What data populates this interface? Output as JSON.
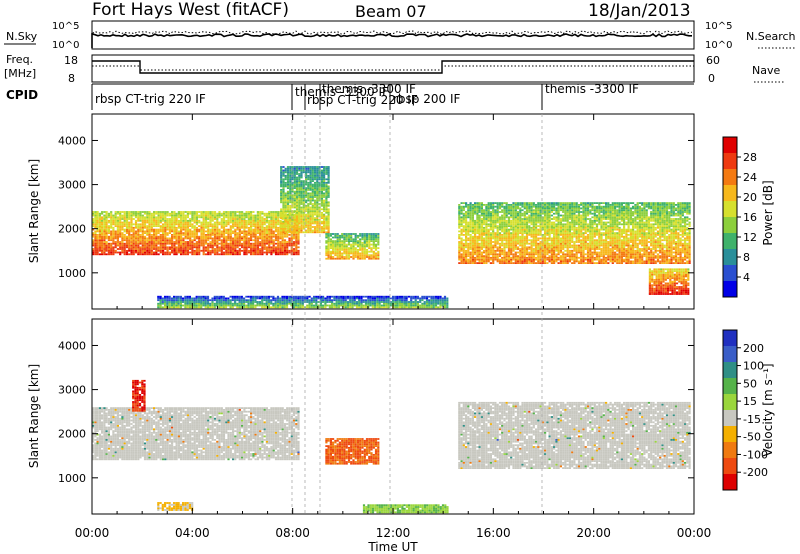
{
  "header": {
    "station": "Fort Hays West (fitACF)",
    "beam": "Beam 07",
    "date": "18/Jan/2013"
  },
  "strips": {
    "nsky": {
      "left_label": "N.Sky",
      "left_ticks": [
        "10^5",
        "10^0"
      ],
      "right_label": "N.Search",
      "right_ticks": [
        "10^5",
        "10^0"
      ]
    },
    "freq": {
      "left_label_line1": "Freq.",
      "left_label_line2": "[MHz]",
      "left_ticks": [
        "18",
        "8"
      ],
      "right_label": "Nave",
      "right_ticks": [
        "60",
        "0"
      ]
    },
    "cpid": {
      "label": "CPID",
      "segments": [
        "rbsp CT-trig 220 IF",
        "themis -3300 IF",
        "themis -3300 IF",
        "rbsp CT-trig 220 IF",
        "rbsp 200 IF",
        "themis -3300 IF"
      ]
    }
  },
  "x_axis": {
    "label": "Time UT",
    "ticks": [
      "00:00",
      "04:00",
      "08:00",
      "12:00",
      "16:00",
      "20:00",
      "00:00"
    ]
  },
  "power_colorbar": {
    "label": "Power [dB]",
    "ticks": [
      "28",
      "24",
      "20",
      "16",
      "12",
      "8",
      "4"
    ],
    "colors": [
      "#0000e6",
      "#2a4fd0",
      "#2a8f9a",
      "#3fb26b",
      "#8ccf3c",
      "#d6e02e",
      "#f7b81c",
      "#f47a12",
      "#ee3a10",
      "#e00000"
    ]
  },
  "velocity_colorbar": {
    "label": "Velocity [m s⁻¹]",
    "ticks": [
      "200",
      "100",
      "50",
      "15",
      "-15",
      "-50",
      "-100",
      "-200"
    ],
    "colors": [
      "#2030c0",
      "#3a5ec8",
      "#2f8f86",
      "#55b34a",
      "#9ad63c",
      "#c8c8c0",
      "#f4b000",
      "#f07a10",
      "#ee4a10",
      "#dd0000"
    ]
  },
  "chart_data": [
    {
      "type": "heatmap",
      "panel": "power",
      "ylabel": "Slant Range [km]",
      "xlabel": "",
      "x_range_hours": [
        0,
        24
      ],
      "ylim": [
        180,
        4600
      ],
      "y_ticks": [
        1000,
        2000,
        3000,
        4000
      ],
      "colorbar_label": "Power [dB]",
      "regions": [
        {
          "name": "main-band",
          "t_start": 0.0,
          "t_end": 8.2,
          "range_low": 1400,
          "range_high": 2400,
          "power_db": 22
        },
        {
          "name": "evening-patch",
          "t_start": 7.5,
          "t_end": 9.4,
          "range_low": 1900,
          "range_high": 3400,
          "power_db": 14
        },
        {
          "name": "midday-patch",
          "t_start": 9.3,
          "t_end": 11.4,
          "range_low": 1300,
          "range_high": 1900,
          "power_db": 16
        },
        {
          "name": "late-band",
          "t_start": 14.6,
          "t_end": 23.8,
          "range_low": 1200,
          "range_high": 2600,
          "power_db": 18
        },
        {
          "name": "late-low",
          "t_start": 22.2,
          "t_end": 23.8,
          "range_low": 500,
          "range_high": 1100,
          "power_db": 24
        },
        {
          "name": "near-range",
          "t_start": 2.6,
          "t_end": 14.2,
          "range_low": 200,
          "range_high": 450,
          "power_db": 8
        }
      ]
    },
    {
      "type": "heatmap",
      "panel": "velocity",
      "ylabel": "Slant Range [km]",
      "xlabel": "Time UT",
      "x_range_hours": [
        0,
        24
      ],
      "ylim": [
        180,
        4600
      ],
      "y_ticks": [
        1000,
        2000,
        3000,
        4000
      ],
      "colorbar_label": "Velocity [m s⁻¹]",
      "regions": [
        {
          "name": "main-band-ground",
          "t_start": 0.0,
          "t_end": 8.2,
          "range_low": 1400,
          "range_high": 2600,
          "velocity": 0
        },
        {
          "name": "early-red",
          "t_start": 1.6,
          "t_end": 2.1,
          "range_low": 2500,
          "range_high": 3200,
          "velocity": -200
        },
        {
          "name": "midday-red",
          "t_start": 9.3,
          "t_end": 11.4,
          "range_low": 1300,
          "range_high": 1900,
          "velocity": -150
        },
        {
          "name": "late-band-ground",
          "t_start": 14.6,
          "t_end": 23.8,
          "range_low": 1200,
          "range_high": 2700,
          "velocity": 0
        },
        {
          "name": "near-range-orange",
          "t_start": 2.6,
          "t_end": 4.0,
          "range_low": 250,
          "range_high": 450,
          "velocity": -60
        },
        {
          "name": "near-range-green",
          "t_start": 10.8,
          "t_end": 14.2,
          "range_low": 200,
          "range_high": 400,
          "velocity": 40
        }
      ]
    }
  ]
}
